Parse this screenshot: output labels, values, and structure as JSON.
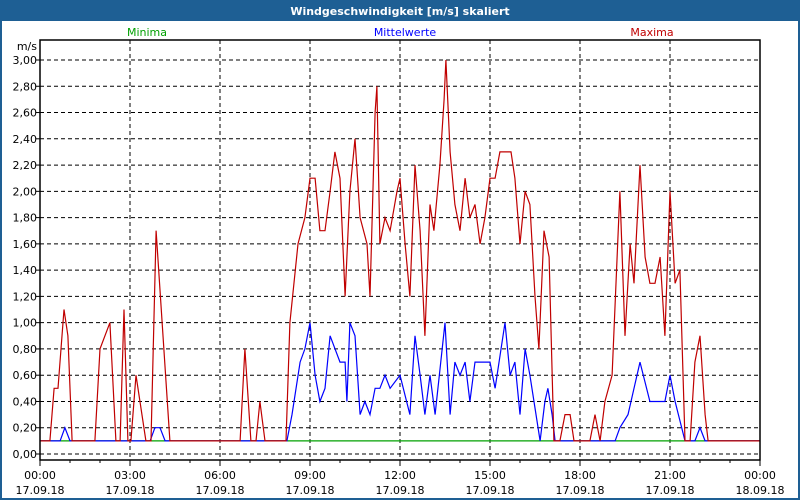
{
  "window": {
    "title": "Windgeschwindigkeit [m/s] skaliert"
  },
  "chart_data": {
    "type": "line",
    "title": "Windgeschwindigkeit [m/s] skaliert",
    "ylabel": "m/s",
    "xlabel": "",
    "ylim": [
      0,
      3.0
    ],
    "xlim_hours": [
      0,
      24
    ],
    "grid": true,
    "legend_placement": "top",
    "yticks": [
      "0,00",
      "0,20",
      "0,40",
      "0,60",
      "0,80",
      "1,00",
      "1,20",
      "1,40",
      "1,60",
      "1,80",
      "2,00",
      "2,20",
      "2,40",
      "2,60",
      "2,80",
      "3,00"
    ],
    "xticks": [
      {
        "time": "00:00",
        "date": "17.09.18"
      },
      {
        "time": "03:00",
        "date": "17.09.18"
      },
      {
        "time": "06:00",
        "date": "17.09.18"
      },
      {
        "time": "09:00",
        "date": "17.09.18"
      },
      {
        "time": "12:00",
        "date": "17.09.18"
      },
      {
        "time": "15:00",
        "date": "17.09.18"
      },
      {
        "time": "18:00",
        "date": "17.09.18"
      },
      {
        "time": "21:00",
        "date": "17.09.18"
      },
      {
        "time": "00:00",
        "date": "18.09.18"
      }
    ],
    "series": [
      {
        "name": "Minima",
        "color": "#00a000",
        "points": [
          [
            0,
            0.1
          ],
          [
            24,
            0.1
          ]
        ]
      },
      {
        "name": "Mittelwerte",
        "color": "#0000ff",
        "points": [
          [
            0,
            0.1
          ],
          [
            0.67,
            0.1
          ],
          [
            0.83,
            0.2
          ],
          [
            1.0,
            0.1
          ],
          [
            3.67,
            0.1
          ],
          [
            3.83,
            0.2
          ],
          [
            4.0,
            0.2
          ],
          [
            4.17,
            0.1
          ],
          [
            8.23,
            0.1
          ],
          [
            8.4,
            0.3
          ],
          [
            8.67,
            0.7
          ],
          [
            8.83,
            0.8
          ],
          [
            9.0,
            1.0
          ],
          [
            9.17,
            0.6
          ],
          [
            9.33,
            0.4
          ],
          [
            9.5,
            0.5
          ],
          [
            9.67,
            0.9
          ],
          [
            10.0,
            0.7
          ],
          [
            10.17,
            0.7
          ],
          [
            10.23,
            0.4
          ],
          [
            10.33,
            1.0
          ],
          [
            10.5,
            0.9
          ],
          [
            10.67,
            0.3
          ],
          [
            10.83,
            0.4
          ],
          [
            11.0,
            0.3
          ],
          [
            11.17,
            0.5
          ],
          [
            11.33,
            0.5
          ],
          [
            11.5,
            0.6
          ],
          [
            11.67,
            0.5
          ],
          [
            12.0,
            0.6
          ],
          [
            12.33,
            0.3
          ],
          [
            12.5,
            0.9
          ],
          [
            12.67,
            0.6
          ],
          [
            12.83,
            0.3
          ],
          [
            13.0,
            0.6
          ],
          [
            13.17,
            0.3
          ],
          [
            13.5,
            1.0
          ],
          [
            13.67,
            0.3
          ],
          [
            13.83,
            0.7
          ],
          [
            14.0,
            0.6
          ],
          [
            14.17,
            0.7
          ],
          [
            14.33,
            0.4
          ],
          [
            14.5,
            0.7
          ],
          [
            15.0,
            0.7
          ],
          [
            15.17,
            0.5
          ],
          [
            15.5,
            1.0
          ],
          [
            15.67,
            0.6
          ],
          [
            15.83,
            0.7
          ],
          [
            16.0,
            0.3
          ],
          [
            16.17,
            0.8
          ],
          [
            16.33,
            0.6
          ],
          [
            16.67,
            0.1
          ],
          [
            16.83,
            0.4
          ],
          [
            16.93,
            0.5
          ],
          [
            17.07,
            0.3
          ],
          [
            17.17,
            0.1
          ],
          [
            19.17,
            0.1
          ],
          [
            19.33,
            0.2
          ],
          [
            19.6,
            0.3
          ],
          [
            20.0,
            0.7
          ],
          [
            20.33,
            0.4
          ],
          [
            20.83,
            0.4
          ],
          [
            21.0,
            0.6
          ],
          [
            21.17,
            0.4
          ],
          [
            21.5,
            0.1
          ],
          [
            21.83,
            0.1
          ],
          [
            22.0,
            0.2
          ],
          [
            22.17,
            0.1
          ],
          [
            24,
            0.1
          ]
        ]
      },
      {
        "name": "Maxima",
        "color": "#c00000",
        "points": [
          [
            0,
            0.1
          ],
          [
            0.33,
            0.1
          ],
          [
            0.47,
            0.5
          ],
          [
            0.6,
            0.5
          ],
          [
            0.8,
            1.1
          ],
          [
            0.93,
            0.9
          ],
          [
            1.07,
            0.1
          ],
          [
            1.83,
            0.1
          ],
          [
            2.0,
            0.8
          ],
          [
            2.33,
            1.0
          ],
          [
            2.53,
            0.1
          ],
          [
            2.67,
            0.1
          ],
          [
            2.8,
            1.1
          ],
          [
            2.93,
            0.1
          ],
          [
            3.03,
            0.1
          ],
          [
            3.2,
            0.6
          ],
          [
            3.53,
            0.1
          ],
          [
            3.7,
            0.1
          ],
          [
            3.87,
            1.7
          ],
          [
            4.33,
            0.1
          ],
          [
            6.67,
            0.1
          ],
          [
            6.83,
            0.8
          ],
          [
            7.03,
            0.1
          ],
          [
            7.2,
            0.1
          ],
          [
            7.33,
            0.4
          ],
          [
            7.5,
            0.1
          ],
          [
            8.2,
            0.1
          ],
          [
            8.33,
            1.0
          ],
          [
            8.6,
            1.6
          ],
          [
            8.83,
            1.8
          ],
          [
            9.0,
            2.1
          ],
          [
            9.17,
            2.1
          ],
          [
            9.33,
            1.7
          ],
          [
            9.5,
            1.7
          ],
          [
            9.67,
            2.0
          ],
          [
            9.83,
            2.3
          ],
          [
            10.0,
            2.1
          ],
          [
            10.17,
            1.2
          ],
          [
            10.33,
            2.0
          ],
          [
            10.5,
            2.4
          ],
          [
            10.67,
            1.8
          ],
          [
            10.9,
            1.6
          ],
          [
            11.0,
            1.2
          ],
          [
            11.17,
            2.6
          ],
          [
            11.23,
            2.8
          ],
          [
            11.33,
            1.6
          ],
          [
            11.5,
            1.8
          ],
          [
            11.67,
            1.7
          ],
          [
            11.9,
            2.0
          ],
          [
            12.0,
            2.1
          ],
          [
            12.17,
            1.6
          ],
          [
            12.33,
            1.2
          ],
          [
            12.5,
            2.2
          ],
          [
            12.67,
            1.7
          ],
          [
            12.83,
            0.9
          ],
          [
            13.0,
            1.9
          ],
          [
            13.13,
            1.7
          ],
          [
            13.33,
            2.2
          ],
          [
            13.47,
            2.7
          ],
          [
            13.53,
            3.0
          ],
          [
            13.67,
            2.3
          ],
          [
            13.83,
            1.9
          ],
          [
            14.0,
            1.7
          ],
          [
            14.17,
            2.1
          ],
          [
            14.33,
            1.8
          ],
          [
            14.5,
            1.9
          ],
          [
            14.67,
            1.6
          ],
          [
            14.83,
            1.8
          ],
          [
            15.0,
            2.1
          ],
          [
            15.17,
            2.1
          ],
          [
            15.33,
            2.3
          ],
          [
            15.7,
            2.3
          ],
          [
            15.83,
            2.1
          ],
          [
            16.0,
            1.6
          ],
          [
            16.17,
            2.0
          ],
          [
            16.33,
            1.9
          ],
          [
            16.5,
            1.2
          ],
          [
            16.63,
            0.8
          ],
          [
            16.8,
            1.7
          ],
          [
            16.97,
            1.5
          ],
          [
            17.13,
            0.1
          ],
          [
            17.33,
            0.1
          ],
          [
            17.5,
            0.3
          ],
          [
            17.67,
            0.3
          ],
          [
            17.8,
            0.1
          ],
          [
            18.33,
            0.1
          ],
          [
            18.5,
            0.3
          ],
          [
            18.67,
            0.1
          ],
          [
            18.83,
            0.4
          ],
          [
            19.07,
            0.6
          ],
          [
            19.33,
            2.0
          ],
          [
            19.5,
            0.9
          ],
          [
            19.67,
            1.6
          ],
          [
            19.8,
            1.3
          ],
          [
            20.0,
            2.2
          ],
          [
            20.17,
            1.5
          ],
          [
            20.33,
            1.3
          ],
          [
            20.5,
            1.3
          ],
          [
            20.67,
            1.5
          ],
          [
            20.83,
            0.9
          ],
          [
            21.0,
            2.0
          ],
          [
            21.17,
            1.3
          ],
          [
            21.33,
            1.4
          ],
          [
            21.5,
            0.1
          ],
          [
            21.67,
            0.1
          ],
          [
            21.83,
            0.7
          ],
          [
            22.0,
            0.9
          ],
          [
            22.17,
            0.3
          ],
          [
            22.27,
            0.1
          ],
          [
            24,
            0.1
          ]
        ]
      }
    ]
  }
}
